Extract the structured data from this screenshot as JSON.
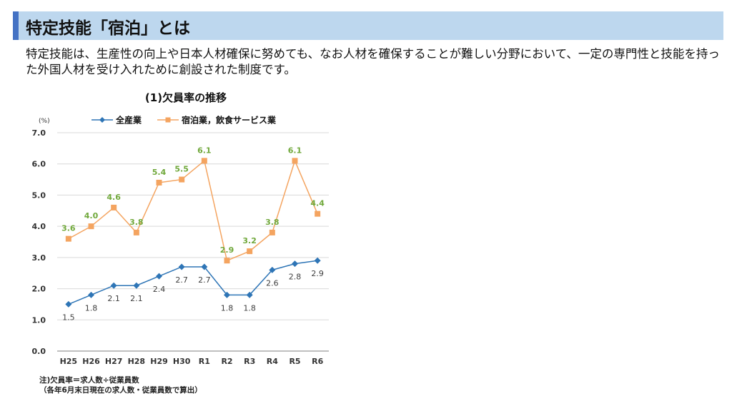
{
  "page": {
    "title": "特定技能「宿泊」とは",
    "description": "特定技能は、生産性の向上や日本人材確保に努めても、なお人材を確保することが難しい分野において、一定の専門性と技能を持った外国人材を受け入れために創設された制度です。"
  },
  "chart_data": {
    "type": "line",
    "title": "(1)欠員率の推移",
    "unit_label": "(%)",
    "categories": [
      "H25",
      "H26",
      "H27",
      "H28",
      "H29",
      "H30",
      "R1",
      "R2",
      "R3",
      "R4",
      "R5",
      "R6"
    ],
    "ylim": [
      0,
      7
    ],
    "yticks": [
      "0.0",
      "1.0",
      "2.0",
      "3.0",
      "4.0",
      "5.0",
      "6.0",
      "7.0"
    ],
    "grid": true,
    "legend_position": "top",
    "series": [
      {
        "name": "全産業",
        "color": "#2e75b6",
        "marker": "diamond",
        "values": [
          1.5,
          1.8,
          2.1,
          2.1,
          2.4,
          2.7,
          2.7,
          1.8,
          1.8,
          2.6,
          2.8,
          2.9
        ],
        "labels": [
          "1.5",
          "1.8",
          "2.1",
          "2.1",
          "2.4",
          "2.7",
          "2.7",
          "1.8",
          "1.8",
          "2.6",
          "2.8",
          "2.9"
        ],
        "label_color": "#404040"
      },
      {
        "name": "宿泊業，飲食サービス業",
        "color": "#f4a460",
        "marker": "square",
        "values": [
          3.6,
          4.0,
          4.6,
          3.8,
          5.4,
          5.5,
          6.1,
          2.9,
          3.2,
          3.8,
          6.1,
          4.4
        ],
        "labels": [
          "3.6",
          "4.0",
          "4.6",
          "3.8",
          "5.4",
          "5.5",
          "6.1",
          "2.9",
          "3.2",
          "3.8",
          "6.1",
          "4.4"
        ],
        "label_color": "#70a83b"
      }
    ],
    "notes": [
      "注)欠員率＝求人数÷従業員数",
      "（各年6月末日現在の求人数・従業員数で算出）"
    ]
  }
}
